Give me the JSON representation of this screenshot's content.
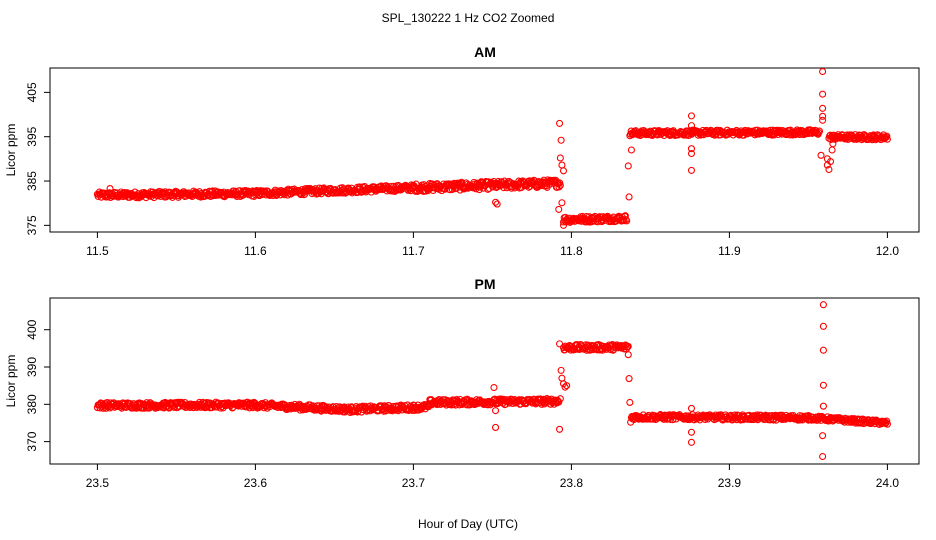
{
  "chart_data": {
    "type": "scatter",
    "title": "SPL_130222  1 Hz CO2 Zoomed",
    "xlabel": "Hour of Day (UTC)",
    "color": "#ff0000",
    "panels": [
      {
        "title": "AM",
        "ylabel": "Licor ppm",
        "xlim": [
          11.47,
          12.02
        ],
        "ylim": [
          373.5,
          410.5
        ],
        "xticks": [
          "11.5",
          "11.6",
          "11.7",
          "11.8",
          "11.9",
          "12.0"
        ],
        "yticks": [
          "375",
          "385",
          "395",
          "405"
        ],
        "bands": [
          {
            "x0": 11.5,
            "y0": 381.8,
            "x1": 11.6,
            "y1": 382.2,
            "spread": 0.7
          },
          {
            "x0": 11.6,
            "y0": 382.2,
            "x1": 11.7,
            "y1": 383.5,
            "spread": 0.7
          },
          {
            "x0": 11.7,
            "y0": 383.5,
            "x1": 11.793,
            "y1": 384.5,
            "spread": 0.9
          },
          {
            "x0": 11.795,
            "y0": 376.3,
            "x1": 11.835,
            "y1": 376.6,
            "spread": 0.7
          },
          {
            "x0": 11.837,
            "y0": 395.8,
            "x1": 11.957,
            "y1": 396.0,
            "spread": 0.6
          },
          {
            "x0": 11.963,
            "y0": 394.9,
            "x1": 12.0,
            "y1": 394.9,
            "spread": 0.6
          }
        ],
        "points": [
          [
            11.508,
            383.3
          ],
          [
            11.752,
            380.2
          ],
          [
            11.753,
            379.8
          ],
          [
            11.7925,
            398.0
          ],
          [
            11.7935,
            394.2
          ],
          [
            11.793,
            390.2
          ],
          [
            11.794,
            388.6
          ],
          [
            11.795,
            387.3
          ],
          [
            11.792,
            378.6
          ],
          [
            11.794,
            380.1
          ],
          [
            11.795,
            375.0
          ],
          [
            11.836,
            388.4
          ],
          [
            11.8365,
            381.4
          ],
          [
            11.838,
            392.0
          ],
          [
            11.876,
            399.7
          ],
          [
            11.876,
            397.5
          ],
          [
            11.876,
            392.3
          ],
          [
            11.876,
            391.2
          ],
          [
            11.876,
            387.4
          ],
          [
            11.959,
            409.7
          ],
          [
            11.959,
            404.6
          ],
          [
            11.959,
            401.4
          ],
          [
            11.959,
            399.6
          ],
          [
            11.959,
            398.7
          ],
          [
            11.958,
            390.8
          ],
          [
            11.962,
            390.0
          ],
          [
            11.962,
            388.6
          ],
          [
            11.963,
            387.6
          ],
          [
            11.964,
            389.4
          ],
          [
            11.965,
            392.0
          ],
          [
            11.9655,
            393.4
          ]
        ]
      },
      {
        "title": "PM",
        "ylabel": "Licor ppm",
        "xlim": [
          23.47,
          24.02
        ],
        "ylim": [
          364.0,
          408.5
        ],
        "xticks": [
          "23.5",
          "23.6",
          "23.7",
          "23.8",
          "23.9",
          "24.0"
        ],
        "yticks": [
          "370",
          "380",
          "390",
          "400"
        ],
        "bands": [
          {
            "x0": 23.5,
            "y0": 379.7,
            "x1": 23.6,
            "y1": 379.8,
            "spread": 0.8
          },
          {
            "x0": 23.6,
            "y0": 379.8,
            "x1": 23.66,
            "y1": 378.6,
            "spread": 0.8
          },
          {
            "x0": 23.66,
            "y0": 378.6,
            "x1": 23.71,
            "y1": 379.3,
            "spread": 0.8
          },
          {
            "x0": 23.71,
            "y0": 380.5,
            "x1": 23.792,
            "y1": 380.8,
            "spread": 0.8
          },
          {
            "x0": 23.795,
            "y0": 395.2,
            "x1": 23.836,
            "y1": 395.3,
            "spread": 0.8
          },
          {
            "x0": 23.838,
            "y0": 376.6,
            "x1": 23.95,
            "y1": 376.4,
            "spread": 0.7
          },
          {
            "x0": 23.95,
            "y0": 376.4,
            "x1": 24.0,
            "y1": 375.0,
            "spread": 0.6
          }
        ],
        "points": [
          [
            23.751,
            384.5
          ],
          [
            23.752,
            378.3
          ],
          [
            23.752,
            373.8
          ],
          [
            23.7925,
            396.2
          ],
          [
            23.7935,
            389.1
          ],
          [
            23.794,
            387.0
          ],
          [
            23.795,
            385.5
          ],
          [
            23.796,
            384.6
          ],
          [
            23.797,
            385.0
          ],
          [
            23.7925,
            373.3
          ],
          [
            23.793,
            381.5
          ],
          [
            23.836,
            393.3
          ],
          [
            23.8365,
            386.9
          ],
          [
            23.837,
            380.5
          ],
          [
            23.8375,
            375.2
          ],
          [
            23.876,
            378.9
          ],
          [
            23.876,
            372.5
          ],
          [
            23.876,
            369.8
          ],
          [
            23.9595,
            406.7
          ],
          [
            23.9595,
            400.9
          ],
          [
            23.9595,
            394.5
          ],
          [
            23.9595,
            385.1
          ],
          [
            23.9595,
            379.5
          ],
          [
            23.959,
            371.6
          ],
          [
            23.959,
            366.0
          ]
        ]
      }
    ]
  }
}
